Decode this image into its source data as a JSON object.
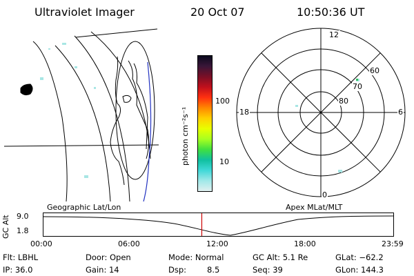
{
  "header": {
    "instrument": "Ultraviolet Imager",
    "date": "20 Oct 07",
    "time": "10:50:36 UT"
  },
  "colorbar": {
    "unit_label": "photon cm⁻²s⁻¹",
    "ticks": [
      "100",
      "10"
    ],
    "colors": [
      "#0a0a1e",
      "#3a1638",
      "#7a0f26",
      "#c0101c",
      "#ff3010",
      "#ff8800",
      "#ffd000",
      "#e8ff00",
      "#a8ff20",
      "#40e040",
      "#10c0a0",
      "#40d8d8",
      "#a0e8e8",
      "#e0f0f0"
    ]
  },
  "polar_plot": {
    "mlt_labels": {
      "top": "12",
      "left": "18",
      "right": "6",
      "bottom": "0"
    },
    "lat_labels": [
      "60",
      "70",
      "80"
    ]
  },
  "projection_labels": {
    "left": "Geographic Lat/Lon",
    "right": "Apex MLat/MLT"
  },
  "altitude_plot": {
    "ylabel": "GC Alt",
    "yticks": [
      "9.0",
      "1.8"
    ],
    "xticks": [
      "00:00",
      "06:00",
      "12:00",
      "18:00",
      "23:59"
    ],
    "marker_time_hours": 10.84,
    "marker_color": "#cc0000"
  },
  "info": {
    "filter": "Flt: LBHL",
    "ip": "IP: 36.0",
    "door": "Door: Open",
    "gain": "Gain: 14",
    "mode": "Mode: Normal",
    "dsp_label": "Dsp:",
    "dsp_value": "8.5",
    "gc_alt": "GC Alt: 5.1 Re",
    "seq": "Seq: 39",
    "glat": "GLat: −62.2",
    "glon": "GLon: 144.3"
  }
}
